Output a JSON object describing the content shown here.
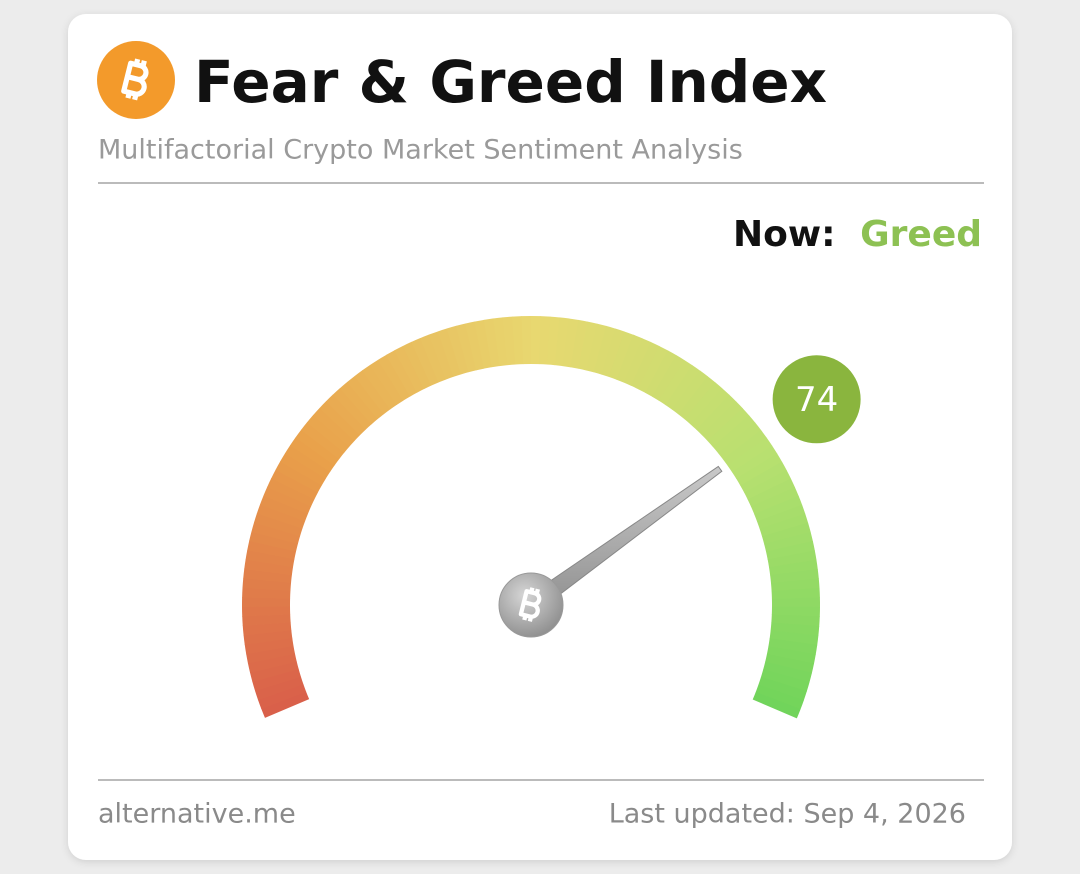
{
  "header": {
    "title": "Fear & Greed Index",
    "subtitle": "Multifactorial Crypto Market Sentiment Analysis"
  },
  "status": {
    "label": "Now:",
    "value": "Greed"
  },
  "chart_data": {
    "type": "gauge",
    "value": 74,
    "ylim": [
      0,
      100
    ],
    "color": "#8ab53e"
  },
  "footer": {
    "source": "alternative.me",
    "updated": "Last updated: Sep 4, 2026"
  }
}
